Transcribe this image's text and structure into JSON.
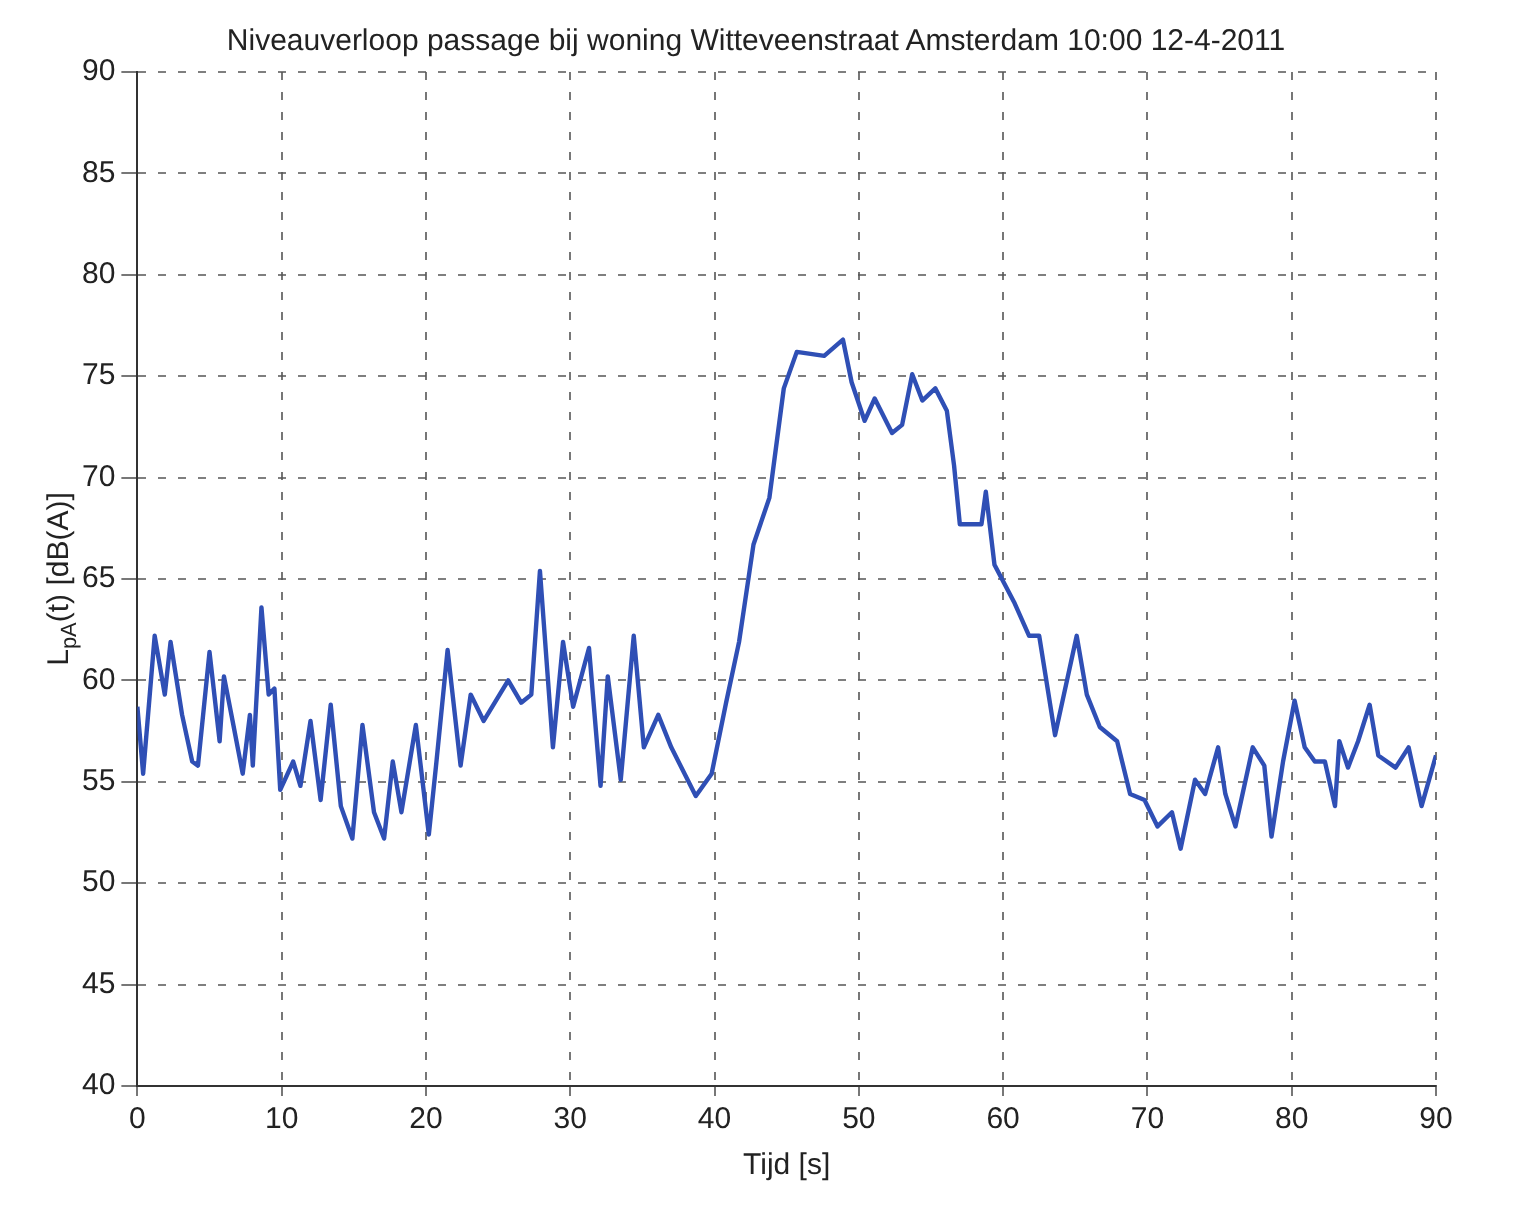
{
  "chart_data": {
    "type": "line",
    "title": "Niveauverloop passage bij woning Witteveenstraat Amsterdam 10:00 12-4-2011",
    "xlabel": "Tijd [s]",
    "ylabel": "L$_{pA}$(t) [dB(A)]",
    "x": [
      0,
      0.4,
      1.2,
      1.9,
      2.3,
      3.1,
      3.8,
      4.2,
      5.0,
      5.7,
      6.0,
      6.6,
      7.3,
      7.8,
      8.0,
      8.6,
      9.1,
      9.5,
      9.9,
      10.8,
      11.3,
      12.0,
      12.7,
      13.4,
      14.1,
      14.9,
      15.6,
      16.4,
      17.1,
      17.7,
      18.3,
      19.3,
      20.2,
      20.7,
      21.5,
      22.4,
      23.1,
      24.0,
      25.7,
      26.6,
      27.3,
      27.9,
      28.8,
      29.5,
      30.2,
      31.3,
      32.1,
      32.6,
      33.5,
      34.4,
      35.1,
      36.1,
      37.0,
      38.7,
      39.8,
      40.8,
      41.7,
      42.7,
      43.8,
      44.8,
      45.7,
      47.6,
      48.9,
      49.5,
      50.4,
      51.1,
      52.3,
      53.0,
      53.7,
      54.4,
      55.3,
      56.1,
      56.6,
      57.0,
      58.5,
      58.8,
      59.4,
      60.8,
      61.8,
      62.5,
      63.6,
      65.1,
      65.8,
      66.7,
      67.9,
      68.8,
      69.8,
      70.7,
      71.7,
      72.3,
      73.3,
      74.0,
      74.9,
      75.4,
      76.1,
      77.3,
      78.1,
      78.6,
      79.4,
      80.2,
      80.9,
      81.6,
      82.3,
      83.0,
      83.3,
      83.9,
      84.6,
      85.4,
      86.0,
      87.2,
      88.1,
      89.0,
      90.0
    ],
    "series": [
      {
        "color": "#2f4fb5",
        "values": [
          58.7,
          55.4,
          62.2,
          59.3,
          61.9,
          58.3,
          56.0,
          55.8,
          61.4,
          57.0,
          60.2,
          58.0,
          55.4,
          58.3,
          55.8,
          63.6,
          59.3,
          59.6,
          54.6,
          56.0,
          54.8,
          58.0,
          54.1,
          58.8,
          53.8,
          52.2,
          57.8,
          53.5,
          52.2,
          56.0,
          53.5,
          57.8,
          52.4,
          55.8,
          61.5,
          55.8,
          59.3,
          58.0,
          60.0,
          58.9,
          59.3,
          65.4,
          56.7,
          61.9,
          58.7,
          61.6,
          54.8,
          60.2,
          55.1,
          62.2,
          56.7,
          58.3,
          56.7,
          54.3,
          55.4,
          58.9,
          61.9,
          66.7,
          69.0,
          74.4,
          76.2,
          76.0,
          76.8,
          74.7,
          72.8,
          73.9,
          72.2,
          72.6,
          75.1,
          73.8,
          74.4,
          73.3,
          70.6,
          67.7,
          67.7,
          69.3,
          65.7,
          63.8,
          62.2,
          62.2,
          57.3,
          62.2,
          59.3,
          57.7,
          57.0,
          54.4,
          54.1,
          52.8,
          53.5,
          51.7,
          55.1,
          54.4,
          56.7,
          54.4,
          52.8,
          56.7,
          55.8,
          52.3,
          56.0,
          59.0,
          56.7,
          56.0,
          56.0,
          53.8,
          57.0,
          55.7,
          57.0,
          58.8,
          56.3,
          55.7,
          56.7,
          53.8,
          56.3
        ]
      }
    ],
    "xlim": [
      0,
      90
    ],
    "xticks": [
      0,
      10,
      20,
      30,
      40,
      50,
      60,
      70,
      80,
      90
    ],
    "ylim": [
      40,
      90
    ],
    "yticks": [
      40,
      45,
      50,
      55,
      60,
      65,
      70,
      75,
      80,
      85,
      90
    ],
    "grid": true,
    "marker": "none",
    "line_style": "solid"
  }
}
